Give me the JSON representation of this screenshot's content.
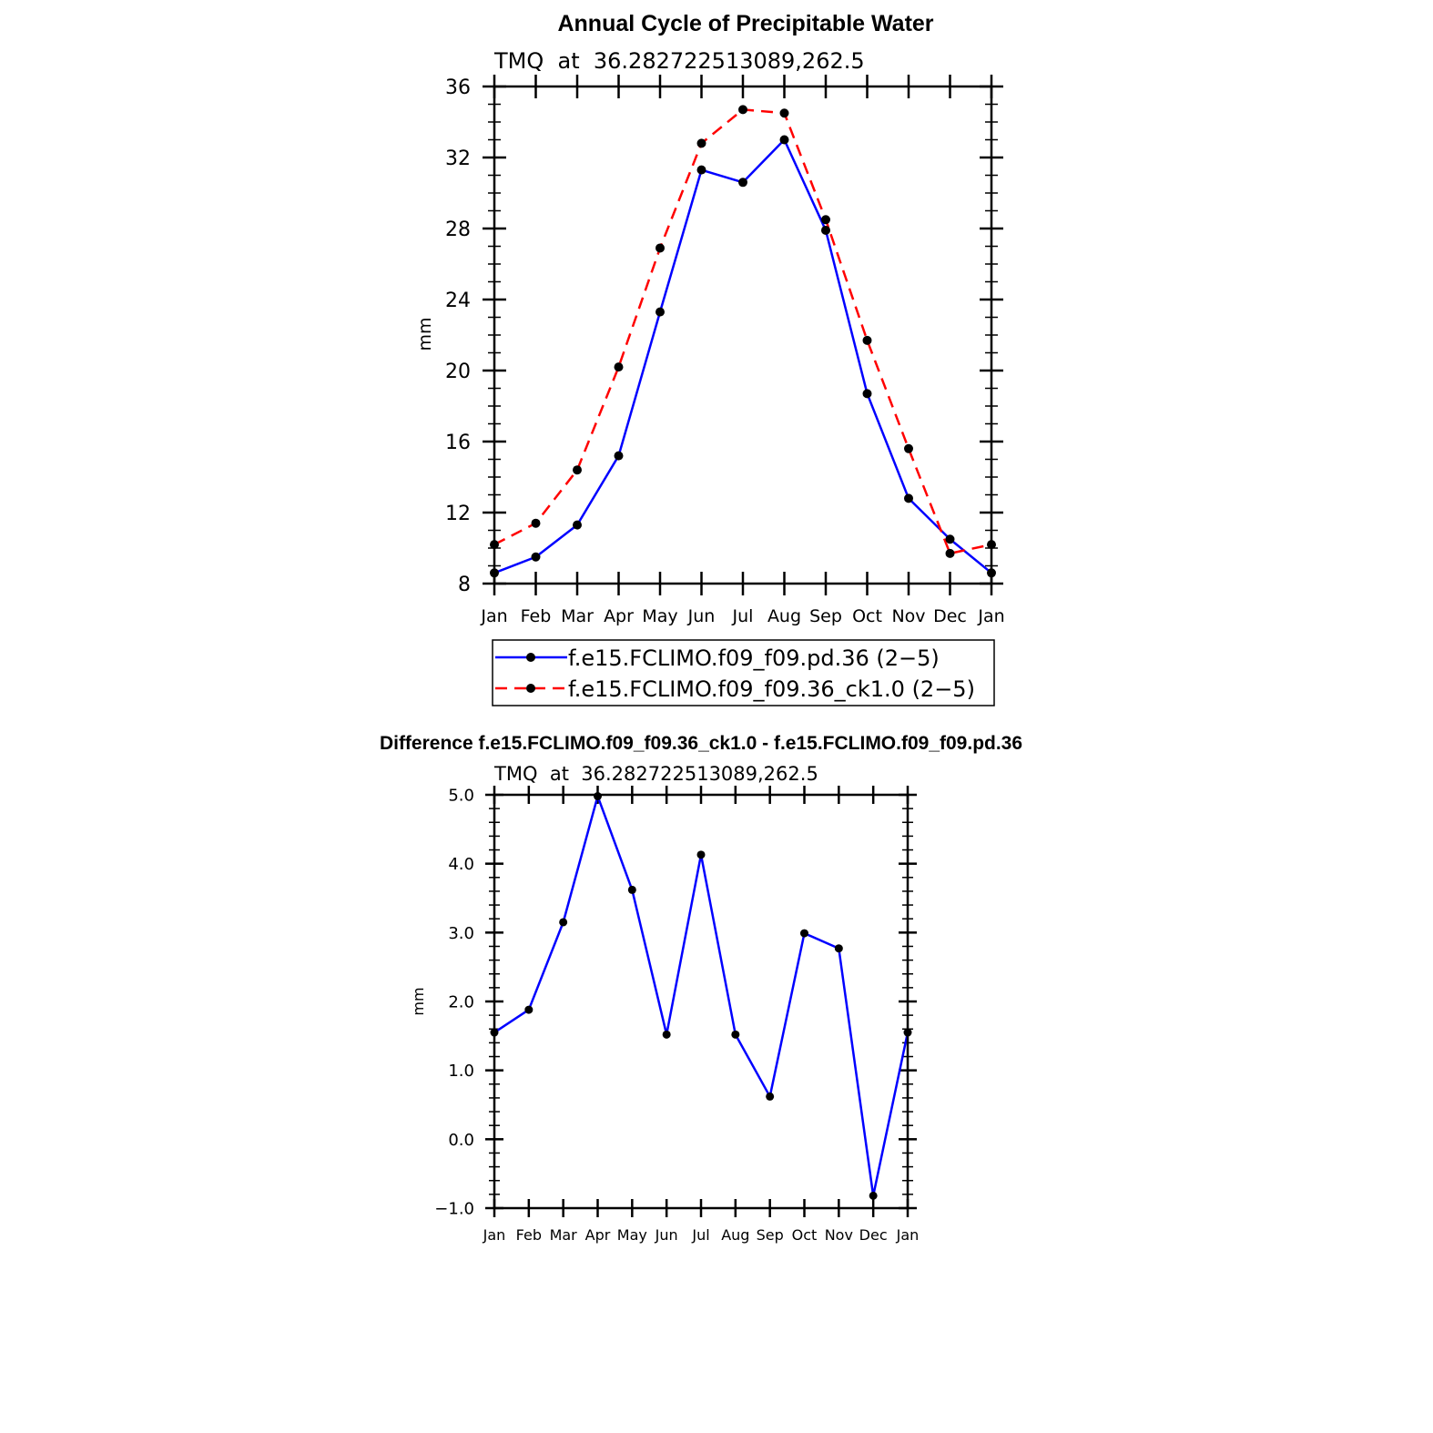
{
  "chart_data": [
    {
      "type": "line",
      "title": "Annual Cycle of Precipitable Water",
      "subtitle": "TMQ  at  36.282722513089,262.5",
      "xlabel": "",
      "ylabel": "mm",
      "categories": [
        "Jan",
        "Feb",
        "Mar",
        "Apr",
        "May",
        "Jun",
        "Jul",
        "Aug",
        "Sep",
        "Oct",
        "Nov",
        "Dec",
        "Jan"
      ],
      "ylim": [
        8,
        36
      ],
      "yticks": [
        8,
        12,
        16,
        20,
        24,
        28,
        32,
        36
      ],
      "ytick_labels": [
        "8",
        "12",
        "16",
        "20",
        "24",
        "28",
        "32",
        "36"
      ],
      "grid": false,
      "series": [
        {
          "name": "f.e15.FCLIMO.f09_f09.pd.36 (2−5)",
          "color": "#0000ff",
          "dash": "solid",
          "values": [
            8.6,
            9.5,
            11.3,
            15.2,
            23.3,
            31.3,
            30.6,
            33.0,
            27.9,
            18.7,
            12.8,
            10.5,
            8.6
          ]
        },
        {
          "name": "f.e15.FCLIMO.f09_f09.36_ck1.0 (2−5)",
          "color": "#ff0000",
          "dash": "dashed",
          "values": [
            10.2,
            11.4,
            14.4,
            20.2,
            26.9,
            32.8,
            34.7,
            34.5,
            28.5,
            21.7,
            15.6,
            9.7,
            10.2
          ]
        }
      ]
    },
    {
      "type": "line",
      "title": "Difference f.e15.FCLIMO.f09_f09.36_ck1.0 - f.e15.FCLIMO.f09_f09.pd.36",
      "subtitle": "TMQ  at  36.282722513089,262.5",
      "xlabel": "",
      "ylabel": "mm",
      "categories": [
        "Jan",
        "Feb",
        "Mar",
        "Apr",
        "May",
        "Jun",
        "Jul",
        "Aug",
        "Sep",
        "Oct",
        "Nov",
        "Dec",
        "Jan"
      ],
      "ylim": [
        -1.0,
        5.0
      ],
      "yticks": [
        -1.0,
        0.0,
        1.0,
        2.0,
        3.0,
        4.0,
        5.0
      ],
      "ytick_labels": [
        "−1.0",
        "0.0",
        "1.0",
        "2.0",
        "3.0",
        "4.0",
        "5.0"
      ],
      "grid": false,
      "series": [
        {
          "name": "difference",
          "color": "#0000ff",
          "dash": "solid",
          "values": [
            1.55,
            1.88,
            3.15,
            4.98,
            3.62,
            1.52,
            4.13,
            1.52,
            0.62,
            2.99,
            2.77,
            -0.82,
            1.55
          ]
        }
      ]
    }
  ]
}
